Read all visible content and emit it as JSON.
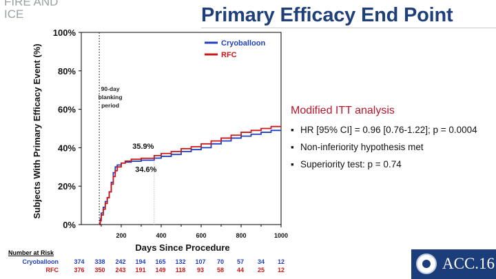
{
  "corner_label": "FIRE AND\nICE",
  "header": {
    "title": "Primary Efficacy End Point"
  },
  "side": {
    "heading": "Modified ITT analysis",
    "bullets": [
      "HR [95% CI] = 0.96 [0.76-1.22]; p = 0.0004",
      "Non-inferiority hypothesis met",
      "Superiority test: p = 0.74"
    ]
  },
  "colors": {
    "cryoballoon": "#1f3fbf",
    "rfc": "#cc1616",
    "title": "#1f3f7a",
    "heading": "#b8152b"
  },
  "chart_data": {
    "type": "line",
    "title": "",
    "xlabel": "Days Since Procedure",
    "ylabel": "Subjects With Primary Efficacy Event (%)",
    "xlim": [
      0,
      1000
    ],
    "ylim": [
      0,
      100
    ],
    "x_ticks": [
      "200",
      "400",
      "600",
      "800",
      "1000"
    ],
    "x_tick_values": [
      200,
      400,
      600,
      800,
      1000
    ],
    "y_ticks": [
      "0%",
      "20%",
      "40%",
      "60%",
      "80%",
      "100%"
    ],
    "y_tick_values": [
      0,
      20,
      40,
      60,
      80,
      100
    ],
    "annotations": [
      {
        "text": "90-day\nblanking\nperiod",
        "x": 90
      },
      {
        "text": "35.9%",
        "x": 365,
        "y": 35.9,
        "series": "RFC"
      },
      {
        "text": "34.6%",
        "x": 365,
        "y": 34.6,
        "series": "Cryoballoon"
      }
    ],
    "legend": [
      "Cryoballoon",
      "RFC"
    ],
    "series": [
      {
        "name": "Cryoballoon",
        "x": [
          90,
          95,
          100,
          110,
          120,
          130,
          140,
          150,
          160,
          170,
          180,
          200,
          220,
          250,
          300,
          365,
          400,
          450,
          500,
          550,
          600,
          650,
          700,
          750,
          800,
          850,
          900,
          950,
          1000
        ],
        "y": [
          0,
          3,
          6,
          9,
          12,
          14,
          17,
          22,
          27,
          30,
          31,
          32,
          32.5,
          33,
          33.5,
          34.6,
          35.5,
          36.5,
          38,
          39,
          40,
          42,
          43.5,
          45,
          46,
          47,
          48,
          49,
          49
        ]
      },
      {
        "name": "RFC",
        "x": [
          90,
          95,
          100,
          110,
          120,
          130,
          140,
          150,
          160,
          170,
          180,
          200,
          220,
          250,
          300,
          365,
          400,
          450,
          500,
          550,
          600,
          650,
          700,
          750,
          800,
          850,
          900,
          950,
          1000
        ],
        "y": [
          0,
          2,
          5,
          8,
          11,
          14,
          17,
          21,
          25,
          28,
          30,
          32,
          33,
          34,
          34.5,
          35.9,
          37,
          38,
          39.5,
          40.5,
          42,
          43.5,
          45,
          46.5,
          48,
          49,
          50,
          51,
          51
        ]
      }
    ],
    "risk_table": {
      "heading": "Number at Risk",
      "rows": [
        {
          "label": "Cryoballoon",
          "values": [
            "374",
            "338",
            "242",
            "194",
            "165",
            "132",
            "107",
            "70",
            "57",
            "34",
            "12"
          ]
        },
        {
          "label": "RFC",
          "values": [
            "376",
            "350",
            "243",
            "191",
            "149",
            "118",
            "93",
            "58",
            "44",
            "25",
            "12"
          ]
        }
      ]
    }
  },
  "logo": {
    "text": "ACC.16"
  }
}
